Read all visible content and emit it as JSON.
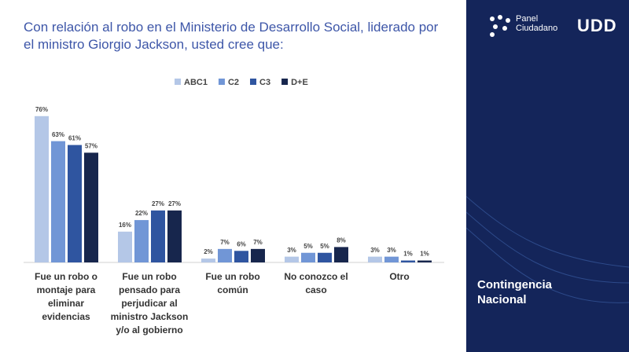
{
  "chart_data": {
    "type": "bar",
    "title": "Con relación al robo en el Ministerio de Desarrollo Social, liderado por el ministro Giorgio Jackson, usted cree que:",
    "categories": [
      "Fue un robo o montaje para eliminar evidencias",
      "Fue un robo pensado para perjudicar al ministro Jackson y/o al gobierno",
      "Fue un robo común",
      "No conozco el caso",
      "Otro"
    ],
    "series": [
      {
        "name": "ABC1",
        "color": "#b4c7e7",
        "values": [
          76,
          16,
          2,
          3,
          3
        ],
        "value_labels": [
          "76%",
          "16%",
          "2%",
          "3%",
          "3%"
        ]
      },
      {
        "name": "C2",
        "color": "#7196d6",
        "values": [
          63,
          22,
          7,
          5,
          3
        ],
        "value_labels": [
          "63%",
          "22%",
          "7%",
          "5%",
          "3%"
        ]
      },
      {
        "name": "C3",
        "color": "#2f55a0",
        "values": [
          61,
          27,
          6,
          5,
          1
        ],
        "value_labels": [
          "61%",
          "27%",
          "6%",
          "5%",
          "1%"
        ]
      },
      {
        "name": "D+E",
        "color": "#17264d",
        "values": [
          57,
          27,
          7,
          8,
          1
        ],
        "value_labels": [
          "57%",
          "27%",
          "7%",
          "8%",
          "1%"
        ]
      }
    ],
    "legend": "top"
  },
  "branding": {
    "line1": "Panel",
    "line2": "Ciudadano",
    "logo": "UDD"
  },
  "section": "Contingencia Nacional"
}
